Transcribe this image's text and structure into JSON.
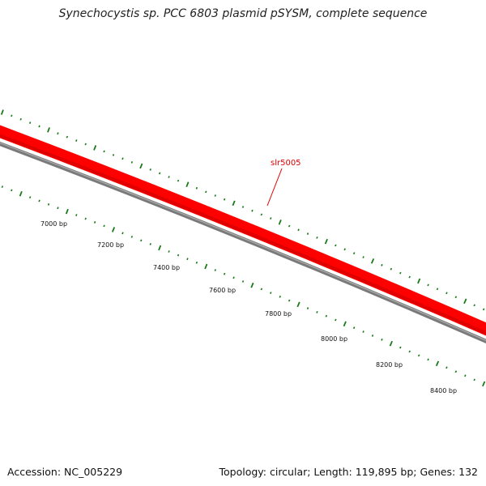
{
  "title": "Synechocystis sp. PCC 6803 plasmid pSYSM, complete sequence",
  "footer": {
    "accession": "Accession: NC_005229",
    "summary": "Topology: circular; Length: 119,895 bp; Genes: 132"
  },
  "colors": {
    "forward_strand": "#ff0000",
    "reverse_strand": "#7a7a7a",
    "ticks": "#1a7a1a",
    "gene_label": "#e00000"
  },
  "gene": {
    "name": "slr5005"
  },
  "position_labels": [
    "7000 bp",
    "7200 bp",
    "7400 bp",
    "7600 bp",
    "7800 bp",
    "8000 bp",
    "8200 bp",
    "8400 bp"
  ]
}
